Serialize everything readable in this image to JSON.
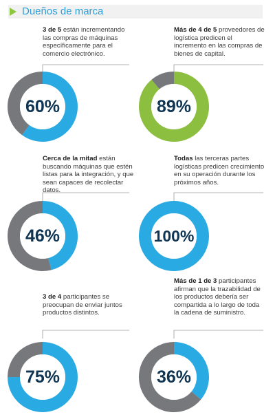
{
  "header": {
    "title": "Dueños de marca"
  },
  "colors": {
    "blue": "#29aae2",
    "green": "#8cbf3f",
    "gray": "#76787b",
    "text_dark": "#0f3553",
    "accent": "#2e9fd6"
  },
  "chart_data": [
    {
      "type": "pie",
      "style": "donut",
      "label": "60%",
      "values": [
        60,
        40
      ],
      "segment_colors": [
        "#29aae2",
        "#76787b"
      ],
      "caption_bold": "3 de 5",
      "caption_text": " están incrementando las compras de máquinas específicamente para el comercio electrónico."
    },
    {
      "type": "pie",
      "style": "donut",
      "label": "89%",
      "values": [
        89,
        11
      ],
      "segment_colors": [
        "#8cbf3f",
        "#76787b"
      ],
      "caption_bold": "Más de 4 de 5",
      "caption_text": " proveedores de logística predicen el incremento en las compras de bienes de capital."
    },
    {
      "type": "pie",
      "style": "donut",
      "label": "46%",
      "values": [
        46,
        54
      ],
      "segment_colors": [
        "#29aae2",
        "#76787b"
      ],
      "caption_bold": "Cerca de la mitad",
      "caption_text": " están buscando máquinas que estén listas para la integración, y que sean capaces de recolectar datos."
    },
    {
      "type": "pie",
      "style": "donut",
      "label": "100%",
      "values": [
        100,
        0
      ],
      "segment_colors": [
        "#29aae2",
        "#76787b"
      ],
      "caption_bold": "Todas",
      "caption_text": " las terceras partes logísticas predicen crecimiento en su operación durante los próximos años."
    },
    {
      "type": "pie",
      "style": "donut",
      "label": "75%",
      "values": [
        75,
        25
      ],
      "segment_colors": [
        "#29aae2",
        "#76787b"
      ],
      "caption_bold": "3 de 4",
      "caption_text": " participantes se preocupan de enviar juntos productos distintos."
    },
    {
      "type": "pie",
      "style": "donut",
      "label": "36%",
      "values": [
        36,
        64
      ],
      "segment_colors": [
        "#29aae2",
        "#76787b"
      ],
      "caption_bold": "Más de 1 de 3",
      "caption_text": " participantes afirman que la trazabilidad de los productos debería ser compartida a lo largo de toda la cadena de suministro."
    }
  ]
}
